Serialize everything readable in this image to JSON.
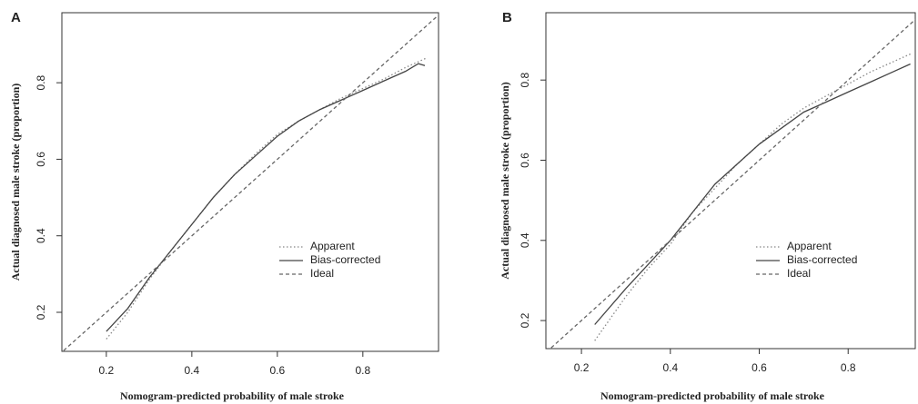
{
  "chart_data": [
    {
      "type": "line",
      "label": "A",
      "xlabel": "Nomogram-predicted probability of male stroke",
      "ylabel": "Actual diagnosed male stroke (proportion)",
      "xlim": [
        0.096,
        0.977
      ],
      "ylim": [
        0.098,
        0.983
      ],
      "xticks": [
        0.2,
        0.4,
        0.6,
        0.8
      ],
      "yticks": [
        0.2,
        0.4,
        0.6,
        0.8
      ],
      "legend": "right",
      "series": [
        {
          "name": "Apparent",
          "color": "#888888",
          "style": "dotted",
          "x": [
            0.2,
            0.25,
            0.3,
            0.35,
            0.4,
            0.45,
            0.5,
            0.55,
            0.6,
            0.65,
            0.7,
            0.75,
            0.8,
            0.85,
            0.9,
            0.95
          ],
          "values": [
            0.13,
            0.2,
            0.285,
            0.36,
            0.43,
            0.5,
            0.56,
            0.615,
            0.665,
            0.7,
            0.73,
            0.76,
            0.785,
            0.81,
            0.84,
            0.865
          ]
        },
        {
          "name": "Bias-corrected",
          "color": "#444444",
          "style": "solid",
          "x": [
            0.2,
            0.25,
            0.3,
            0.35,
            0.4,
            0.45,
            0.5,
            0.55,
            0.6,
            0.65,
            0.7,
            0.75,
            0.8,
            0.85,
            0.9,
            0.93,
            0.945
          ],
          "values": [
            0.15,
            0.21,
            0.29,
            0.36,
            0.43,
            0.5,
            0.56,
            0.61,
            0.66,
            0.7,
            0.73,
            0.755,
            0.78,
            0.805,
            0.83,
            0.85,
            0.845
          ]
        },
        {
          "name": "Ideal",
          "color": "#666666",
          "style": "dashed",
          "x": [
            0.1,
            0.98
          ],
          "values": [
            0.1,
            0.98
          ]
        }
      ]
    },
    {
      "type": "line",
      "label": "B",
      "xlabel": "Nomogram-predicted probability of male stroke",
      "ylabel": "Actual diagnosed male stroke (proportion)",
      "xlim": [
        0.12,
        0.951
      ],
      "ylim": [
        0.13,
        0.968
      ],
      "xticks": [
        0.2,
        0.4,
        0.6,
        0.8
      ],
      "yticks": [
        0.2,
        0.4,
        0.6,
        0.8
      ],
      "legend": "right",
      "series": [
        {
          "name": "Apparent",
          "color": "#888888",
          "style": "dotted",
          "x": [
            0.23,
            0.3,
            0.35,
            0.4,
            0.45,
            0.5,
            0.55,
            0.6,
            0.65,
            0.7,
            0.75,
            0.8,
            0.85,
            0.9,
            0.94
          ],
          "values": [
            0.15,
            0.26,
            0.33,
            0.39,
            0.47,
            0.53,
            0.59,
            0.64,
            0.69,
            0.73,
            0.76,
            0.79,
            0.82,
            0.845,
            0.865
          ]
        },
        {
          "name": "Bias-corrected",
          "color": "#444444",
          "style": "solid",
          "x": [
            0.23,
            0.3,
            0.35,
            0.4,
            0.45,
            0.5,
            0.55,
            0.6,
            0.65,
            0.7,
            0.75,
            0.8,
            0.85,
            0.9,
            0.94
          ],
          "values": [
            0.19,
            0.28,
            0.34,
            0.4,
            0.47,
            0.54,
            0.59,
            0.64,
            0.68,
            0.72,
            0.745,
            0.77,
            0.795,
            0.82,
            0.84
          ]
        },
        {
          "name": "Ideal",
          "color": "#666666",
          "style": "dashed",
          "x": [
            0.1,
            0.98
          ],
          "values": [
            0.1,
            0.98
          ]
        }
      ]
    }
  ]
}
